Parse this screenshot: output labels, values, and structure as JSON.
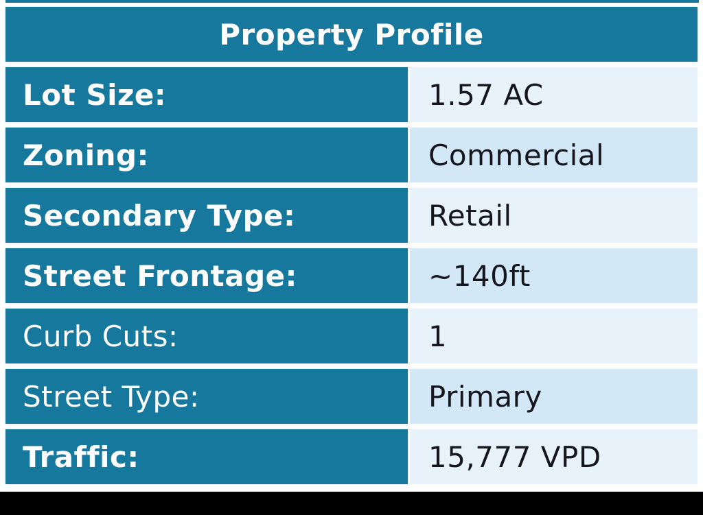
{
  "table": {
    "title": "Property Profile",
    "rows": [
      {
        "label": "Lot Size:",
        "value": "1.57 AC"
      },
      {
        "label": "Zoning:",
        "value": "Commercial"
      },
      {
        "label": "Secondary Type:",
        "value": "Retail"
      },
      {
        "label": "Street Frontage:",
        "value": "~140ft"
      },
      {
        "label": "Curb Cuts:",
        "value": "1"
      },
      {
        "label": "Street Type:",
        "value": "Primary"
      },
      {
        "label": "Traffic:",
        "value": "15,777 VPD"
      }
    ]
  },
  "colors": {
    "teal": "#17789E",
    "value_bg_odd": "#D3E8F6",
    "value_bg_even": "#E7F2FB",
    "value_text": "#16161F",
    "label_text": "#FFFFFF",
    "bottom_bar": "#000000",
    "page_bg": "#FFFFFF"
  }
}
